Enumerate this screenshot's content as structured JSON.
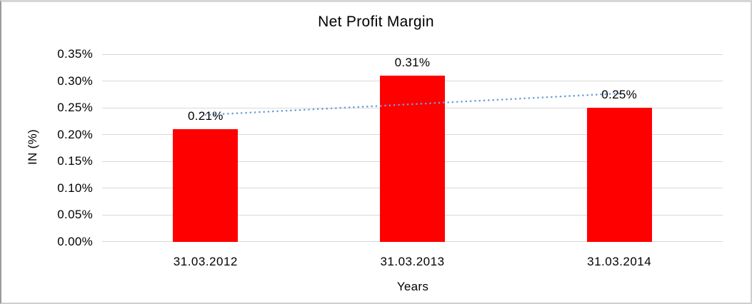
{
  "chart_data": {
    "type": "bar",
    "title": "Net Profit Margin",
    "xlabel": "Years",
    "ylabel": "IN (%)",
    "categories": [
      "31.03.2012",
      "31.03.2013",
      "31.03.2014"
    ],
    "values": [
      0.21,
      0.31,
      0.25
    ],
    "data_labels": [
      "0.21%",
      "0.31%",
      "0.25%"
    ],
    "y_ticks": [
      0,
      0.05,
      0.1,
      0.15,
      0.2,
      0.25,
      0.3,
      0.35
    ],
    "y_tick_labels": [
      "0.00%",
      "0.05%",
      "0.10%",
      "0.15%",
      "0.20%",
      "0.25%",
      "0.30%",
      "0.35%"
    ],
    "ylim": [
      0,
      0.35
    ],
    "grid": true,
    "legend": false,
    "trendline": {
      "type": "linear",
      "style": "dotted"
    },
    "colors": {
      "bar": "#FF0000",
      "trendline": "#6D9ED6",
      "gridline": "#D9D9D9",
      "text": "#000000",
      "background": "#FFFFFF"
    }
  }
}
